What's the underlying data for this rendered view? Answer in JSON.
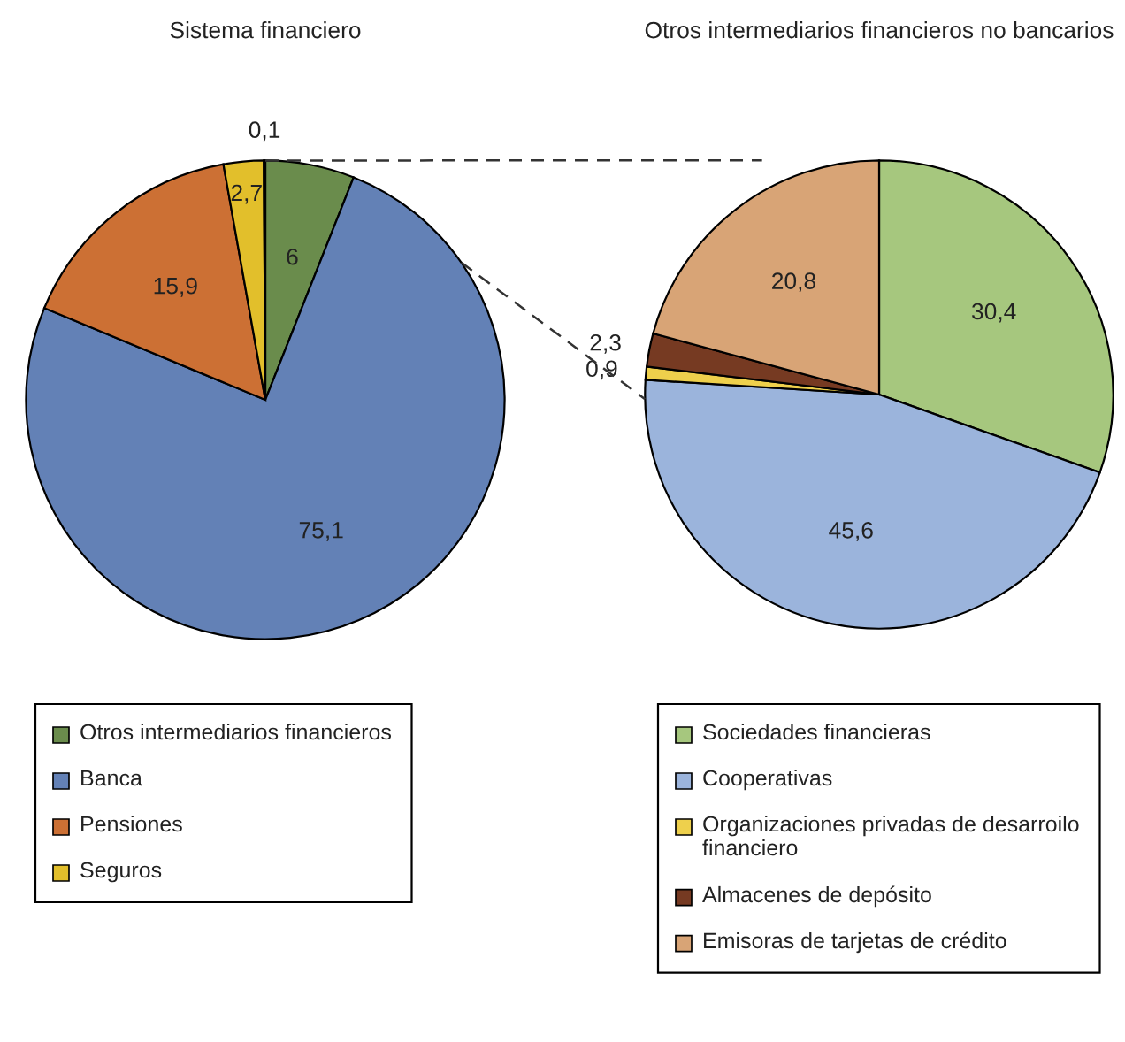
{
  "chart_data": [
    {
      "type": "pie",
      "title": "Sistema financiero",
      "categories": [
        "Otros intermediarios financieros",
        "Banca",
        "Pensiones",
        "Seguros",
        null
      ],
      "values": [
        6,
        75.1,
        15.9,
        2.7,
        0.1
      ],
      "colors": [
        "#6a8c4c",
        "#6381b6",
        "#cc7034",
        "#e2bf2b",
        "#2b2b2b"
      ],
      "value_labels": [
        "6",
        "75,1",
        "15,9",
        "2,7",
        "0,1"
      ],
      "legend": "bottom"
    },
    {
      "type": "pie",
      "title": "Otros intermediarios financieros no bancarios",
      "categories": [
        "Sociedades financieras",
        "Cooperativas",
        "Organizaciones privadas de desarroilo financiero",
        "Almacenes de depósito",
        "Emisoras de tarjetas de crédito"
      ],
      "values": [
        30.4,
        45.6,
        0.9,
        2.3,
        20.8
      ],
      "colors": [
        "#a6c77e",
        "#9bb4dc",
        "#eed04c",
        "#763a22",
        "#d8a476"
      ],
      "value_labels": [
        "30,4",
        "45,6",
        "0,9",
        "2,3",
        "20,8"
      ],
      "legend": "bottom"
    }
  ]
}
